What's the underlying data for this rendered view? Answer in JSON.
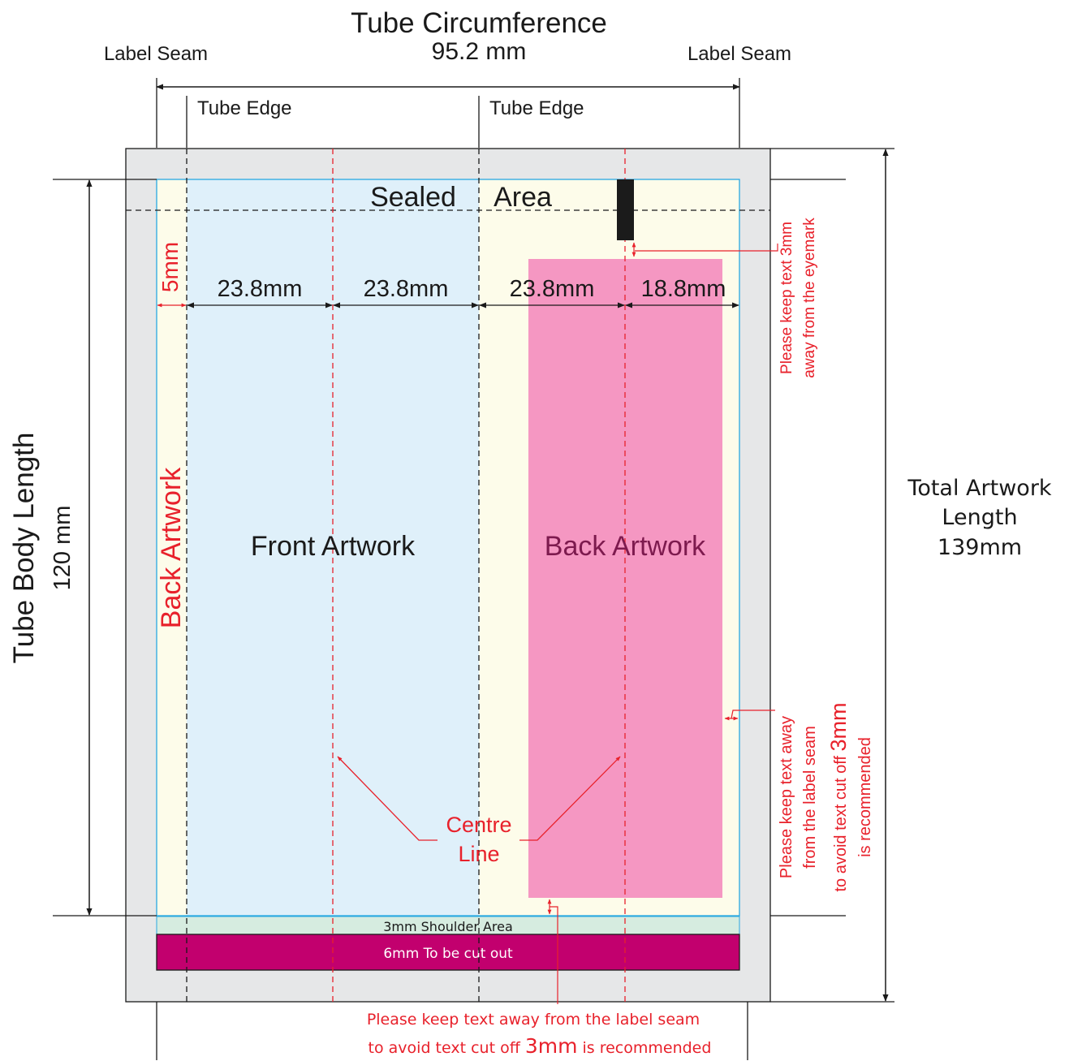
{
  "header": {
    "title": "Tube Circumference",
    "circumference": "95.2 mm",
    "seam_left": "Label Seam",
    "seam_right": "Label Seam",
    "edge_left": "Tube Edge",
    "edge_right": "Tube Edge"
  },
  "sealed": {
    "word1": "Sealed",
    "word2": "Area"
  },
  "widths": {
    "margin": "5mm",
    "col1": "23.8mm",
    "col2": "23.8mm",
    "col3": "23.8mm",
    "col4": "18.8mm"
  },
  "artwork": {
    "front": "Front Artwork",
    "back_right": "Back Artwork",
    "back_left": "Back Artwork"
  },
  "centre_line": {
    "line1": "Centre",
    "line2": "Line"
  },
  "bottom_bands": {
    "shoulder": "3mm Shoulder Area",
    "cut": "6mm To be cut out"
  },
  "body_length": {
    "title": "Tube Body Length",
    "value": "120 mm"
  },
  "total_length": {
    "line1": "Total Artwork",
    "line2": "Length",
    "value": "139mm"
  },
  "eyemark_note": {
    "line1": "Please keep text 3mm",
    "line2": "away from the eyemark"
  },
  "seam_note_right": {
    "line1": "Please keep text away",
    "line2": "from the label seam",
    "line3a": "to avoid text cut off ",
    "line3b": "3mm",
    "line4": "is recommended"
  },
  "seam_note_bottom": {
    "line1": "Please keep text away from the label seam",
    "line2a": "to avoid text cut off ",
    "line2b": "3mm",
    "line2c": " is recommended"
  },
  "colors": {
    "grey_border": "#e6e7e8",
    "front_fill": "#dff0fa",
    "cream_fill": "#fdfcea",
    "pink_fill": "#f597c2",
    "magenta_band": "#c2006e",
    "shoulder_band": "#d6ece0",
    "guide_red": "#e8212b",
    "eyemark": "#1b1b1b"
  }
}
